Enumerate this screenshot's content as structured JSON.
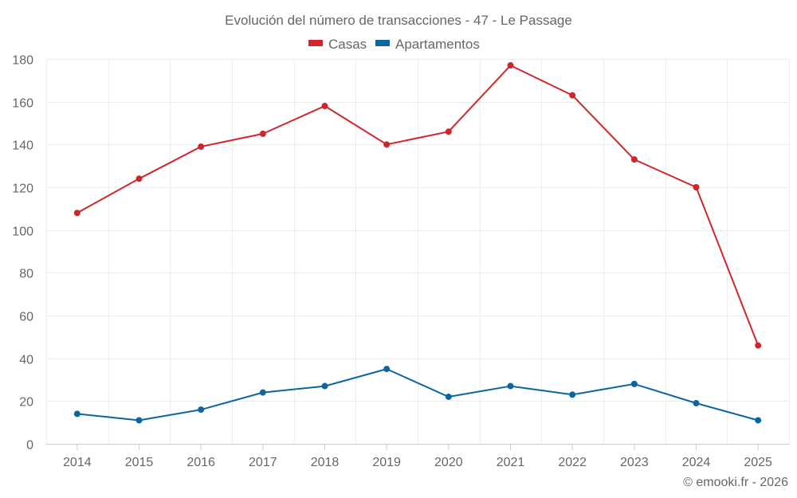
{
  "chart_data": {
    "type": "line",
    "title": "Evolución del número de transacciones - 47 - Le Passage",
    "categories": [
      "2014",
      "2015",
      "2016",
      "2017",
      "2018",
      "2019",
      "2020",
      "2021",
      "2022",
      "2023",
      "2024",
      "2025"
    ],
    "series": [
      {
        "name": "Casas",
        "color": "#d0262b",
        "values": [
          108,
          124,
          139,
          145,
          158,
          140,
          146,
          177,
          163,
          133,
          120,
          46
        ]
      },
      {
        "name": "Apartamentos",
        "color": "#0b66a0",
        "values": [
          14,
          11,
          16,
          24,
          27,
          35,
          22,
          27,
          23,
          28,
          19,
          11
        ]
      }
    ],
    "yticks": [
      0,
      20,
      40,
      60,
      80,
      100,
      120,
      140,
      160,
      180
    ],
    "ylim": [
      0,
      180
    ],
    "xlabel": "",
    "ylabel": "",
    "grid": true,
    "legend_position": "top-center"
  },
  "credit": "© emooki.fr - 2026"
}
